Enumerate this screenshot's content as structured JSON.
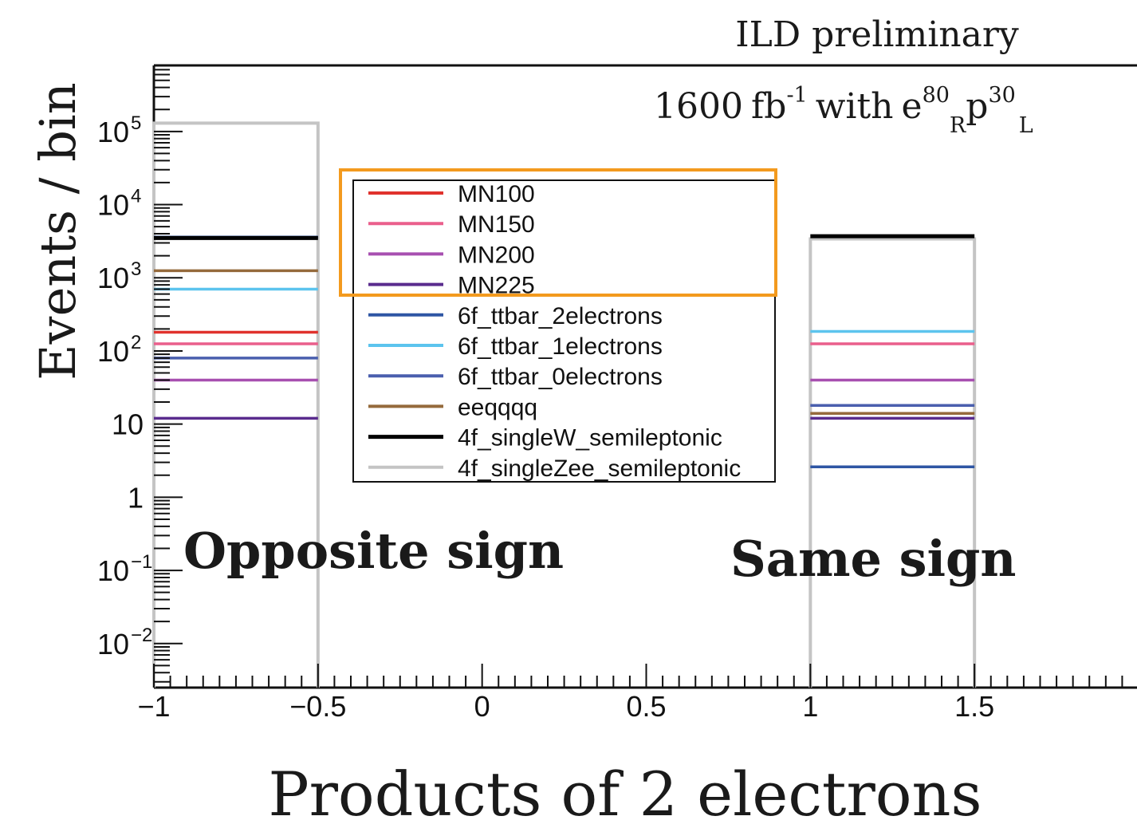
{
  "chart_data": {
    "type": "bar",
    "title": "ILD preliminary",
    "subtitle": {
      "lumi": "1600",
      "unit": "fb",
      "unit_exp": "-1",
      "with": "with",
      "e": "e",
      "e_pol": "80",
      "e_hand": "R",
      "p": "p",
      "p_pol": "30",
      "p_hand": "L"
    },
    "xlabel": "Products of 2 electrons",
    "ylabel": "Events / bin",
    "y_scale": "log",
    "xlim": [
      -1,
      2
    ],
    "ylim": [
      0.0025,
      800000
    ],
    "x_ticks": [
      {
        "value": -1,
        "label": "−1"
      },
      {
        "value": -0.5,
        "label": "−0.5"
      },
      {
        "value": 0,
        "label": "0"
      },
      {
        "value": 0.5,
        "label": "0.5"
      },
      {
        "value": 1,
        "label": "1"
      },
      {
        "value": 1.5,
        "label": "1.5"
      }
    ],
    "y_ticks": [
      {
        "value": 0.01,
        "base": "10",
        "exp": "−2"
      },
      {
        "value": 0.1,
        "base": "10",
        "exp": "−1"
      },
      {
        "value": 1,
        "base": "1",
        "exp": ""
      },
      {
        "value": 10,
        "base": "10",
        "exp": ""
      },
      {
        "value": 100,
        "base": "10",
        "exp": "2"
      },
      {
        "value": 1000,
        "base": "10",
        "exp": "3"
      },
      {
        "value": 10000,
        "base": "10",
        "exp": "4"
      },
      {
        "value": 100000,
        "base": "10",
        "exp": "5"
      }
    ],
    "bins": [
      [
        -1,
        -0.5
      ],
      [
        1,
        1.5
      ]
    ],
    "annotations": [
      {
        "id": "opposite",
        "text": "Opposite sign"
      },
      {
        "id": "same",
        "text": "Same sign"
      }
    ],
    "legend_placement": "center",
    "highlight_box_color": "#f39a1e",
    "series": [
      {
        "name": "MN100",
        "color": "#e0322d",
        "values": [
          180,
          null
        ]
      },
      {
        "name": "MN150",
        "color": "#ea5f8c",
        "values": [
          125,
          125
        ]
      },
      {
        "name": "MN200",
        "color": "#a74fb0",
        "values": [
          40,
          40
        ]
      },
      {
        "name": "MN225",
        "color": "#5a2c8e",
        "values": [
          12,
          12
        ]
      },
      {
        "name": "6f_ttbar_2electrons",
        "color": "#2f56a4",
        "values": [
          3600,
          2.6
        ]
      },
      {
        "name": "6f_ttbar_1electrons",
        "color": "#5cc4ee",
        "values": [
          700,
          185
        ]
      },
      {
        "name": "6f_ttbar_0electrons",
        "color": "#4a5fae",
        "values": [
          80,
          18
        ]
      },
      {
        "name": "eeqqqq",
        "color": "#956a3c",
        "values": [
          1250,
          14
        ]
      },
      {
        "name": "4f_singleW_semileptonic",
        "color": "#000000",
        "values": [
          3500,
          3700
        ]
      },
      {
        "name": "4f_singleZee_semileptonic",
        "color": "#c4c4c4",
        "values": [
          130000,
          3400
        ]
      }
    ]
  }
}
